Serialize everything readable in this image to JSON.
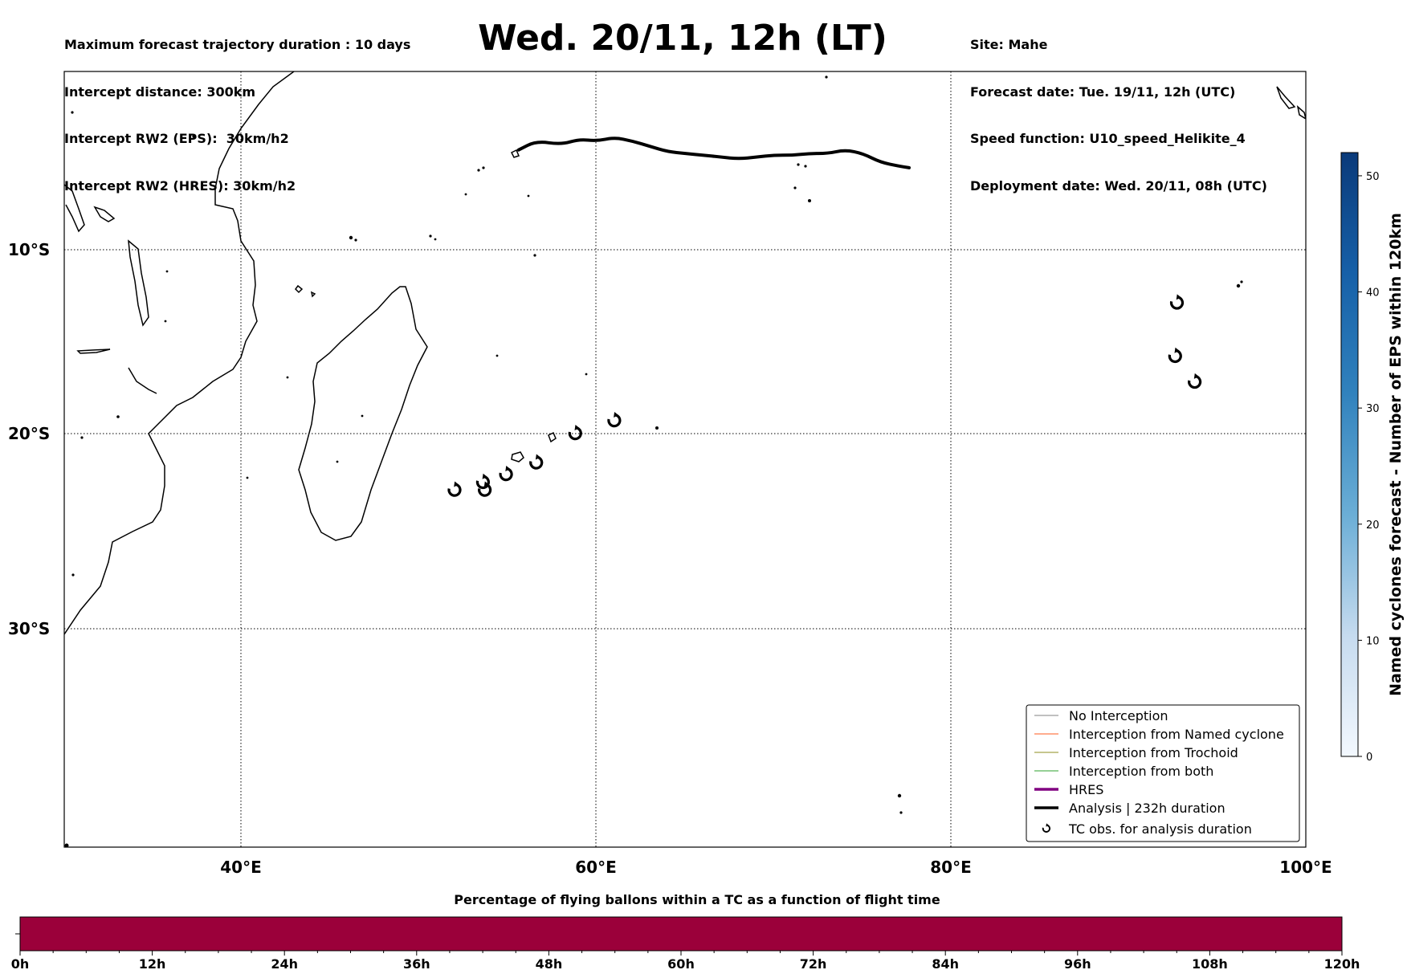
{
  "header": {
    "left": [
      "Maximum forecast trajectory duration : 10 days",
      "Intercept distance: 300km",
      "Intercept RW2 (EPS):  30km/h2",
      "Intercept RW2 (HRES): 30km/h2"
    ],
    "right": [
      "Site: Mahe",
      "Forecast date: Tue. 19/11, 12h (UTC)",
      "Speed function: U10_speed_Helikite_4",
      "Deployment date: Wed. 20/11, 08h (UTC)"
    ],
    "title": "Wed. 20/11, 12h (LT)"
  },
  "map": {
    "lon_range": [
      30,
      100
    ],
    "lat_range": [
      -43.8,
      0
    ],
    "lon_ticks": [
      "40°E",
      "60°E",
      "80°E",
      "100°E"
    ],
    "lat_ticks": [
      "10°S",
      "20°S",
      "30°S"
    ],
    "analysis_track": [
      [
        55.6,
        -4.4
      ],
      [
        56.6,
        -3.9
      ],
      [
        58,
        -4.1
      ],
      [
        59,
        -3.8
      ],
      [
        60,
        -3.9
      ],
      [
        61,
        -3.7
      ],
      [
        62,
        -3.9
      ],
      [
        63,
        -4.2
      ],
      [
        64,
        -4.5
      ],
      [
        65,
        -4.6
      ],
      [
        66,
        -4.7
      ],
      [
        67,
        -4.8
      ],
      [
        68,
        -4.9
      ],
      [
        69,
        -4.8
      ],
      [
        70,
        -4.7
      ],
      [
        71,
        -4.7
      ],
      [
        72,
        -4.6
      ],
      [
        73,
        -4.6
      ],
      [
        74,
        -4.4
      ],
      [
        75,
        -4.6
      ],
      [
        76,
        -5.1
      ],
      [
        77,
        -5.3
      ],
      [
        77.6,
        -5.4
      ]
    ],
    "tc_observations": [
      [
        52.0,
        -22.9
      ],
      [
        53.6,
        -22.5
      ],
      [
        53.7,
        -22.9
      ],
      [
        54.9,
        -22.1
      ],
      [
        56.6,
        -21.5
      ],
      [
        58.8,
        -20.0
      ],
      [
        61.0,
        -19.3
      ],
      [
        92.7,
        -12.9
      ],
      [
        92.6,
        -15.8
      ],
      [
        93.7,
        -17.2
      ]
    ],
    "colors": {
      "analysis": "#000000",
      "coast": "#000000"
    }
  },
  "legend": {
    "items": [
      {
        "label": "No Interception",
        "color": "#808080",
        "width": 1
      },
      {
        "label": "Interception from Named cyclone",
        "color": "#ff5a1e",
        "width": 1
      },
      {
        "label": "Interception from Trochoid",
        "color": "#8c8c1e",
        "width": 1
      },
      {
        "label": "Interception from both",
        "color": "#2ca02c",
        "width": 1
      },
      {
        "label": "HRES",
        "color": "#800080",
        "width": 3
      },
      {
        "label": "Analysis | 232h duration",
        "color": "#000000",
        "width": 3
      },
      {
        "label": "TC obs. for analysis duration",
        "color": "#000000",
        "marker": "cyclone-icon"
      }
    ]
  },
  "colorbar_right": {
    "label": "Named cyclones forecast - Number of EPS within 120km",
    "ticks": [
      "0",
      "10",
      "20",
      "30",
      "40",
      "50"
    ],
    "min": 0,
    "max": 52,
    "colors": {
      "low": "#f3f8fe",
      "high": "#0a3a7a"
    }
  },
  "colorbar_bottom": {
    "title": "Percentage of flying ballons within a TC as a function of flight time",
    "ticks": [
      "0h",
      "12h",
      "24h",
      "36h",
      "48h",
      "60h",
      "72h",
      "84h",
      "96h",
      "108h",
      "120h"
    ],
    "max_hours": 120,
    "fill_color": "#9b003a"
  }
}
